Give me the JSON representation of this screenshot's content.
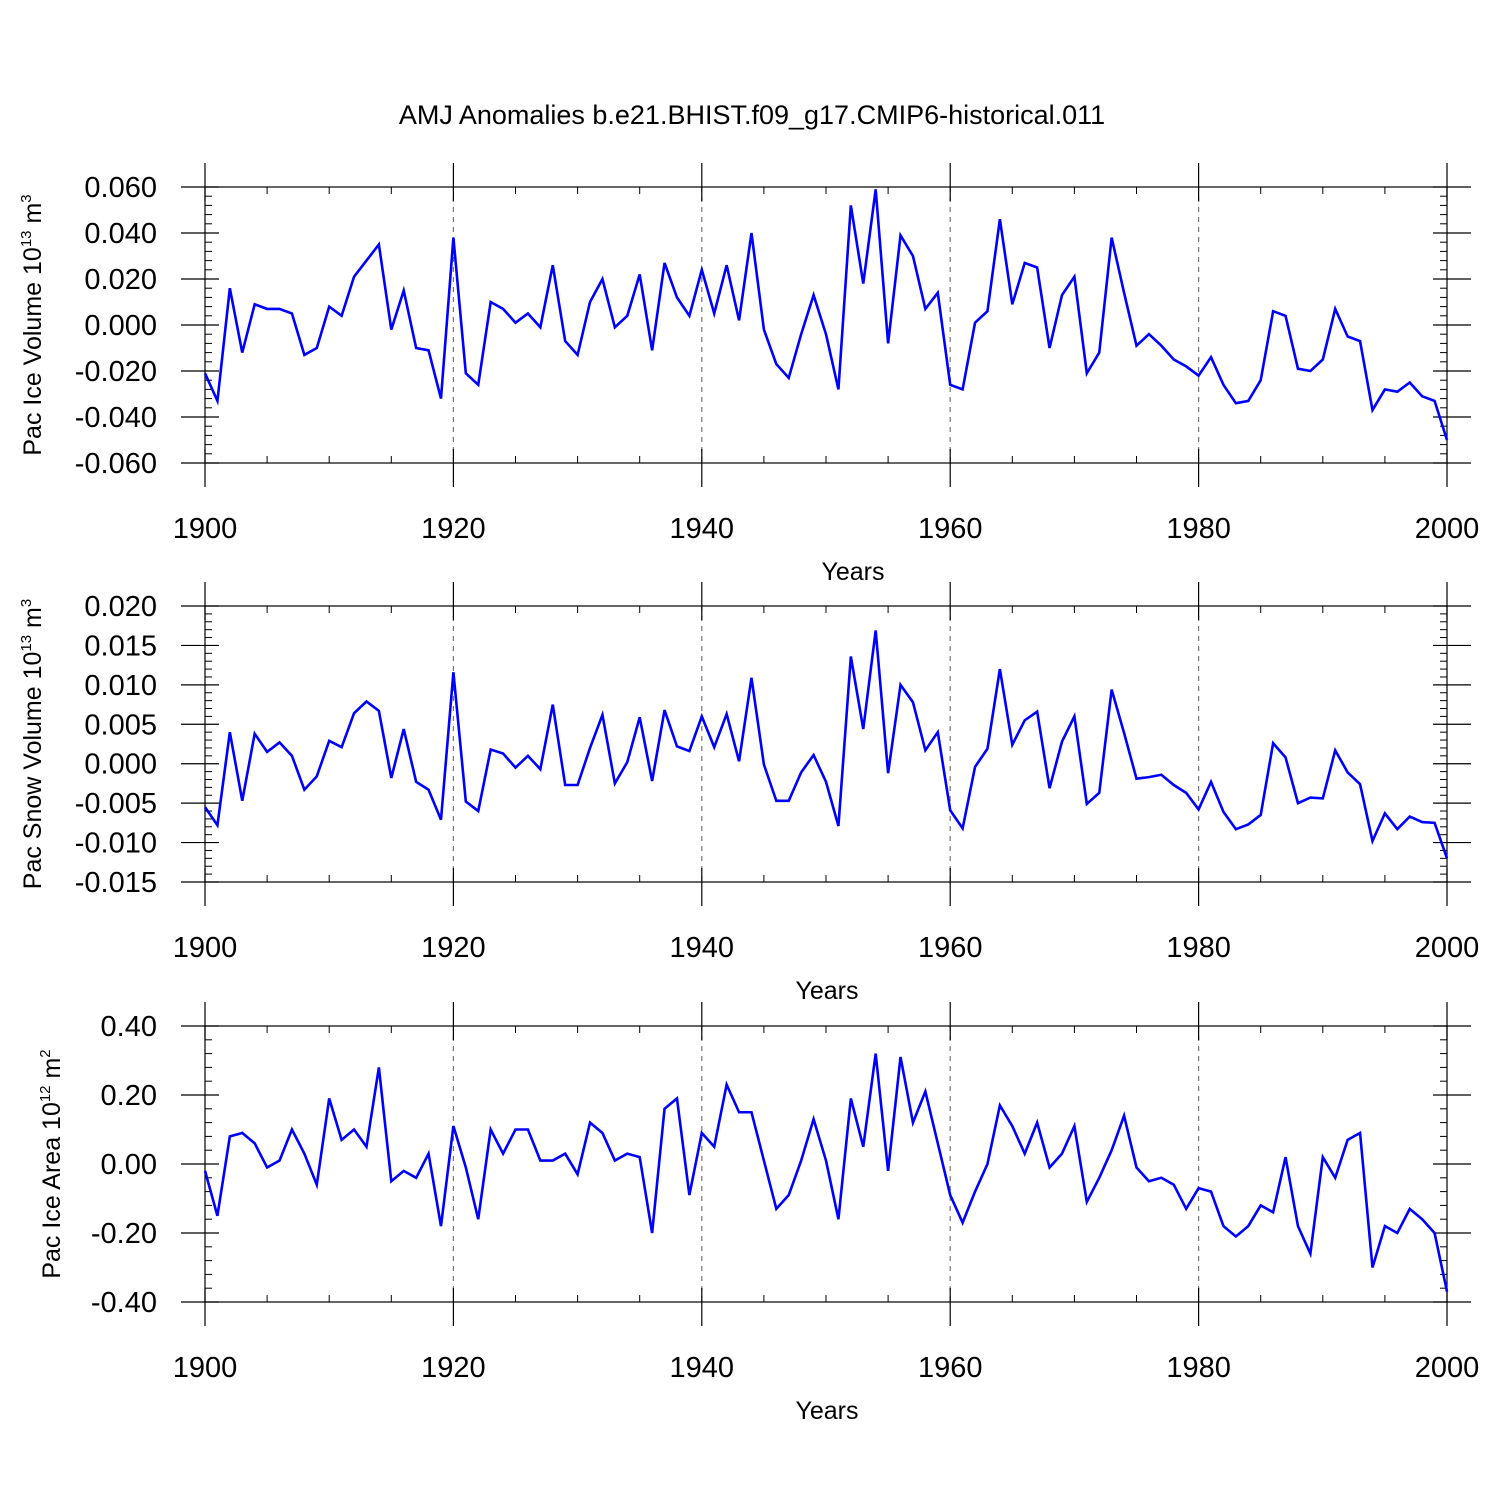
{
  "chart_data": {
    "title": "AMJ Anomalies b.e21.BHIST.f09_g17.CMIP6-historical.011",
    "line_color": "#0000ff",
    "panels": [
      {
        "type": "line",
        "series_name": "Pac Ice Volume",
        "ylabel": "Pac Ice Volume 10",
        "ylabel_exp": "13",
        "ylabel_unit": " m",
        "ylabel_unit_exp": "3",
        "xlabel": "Years",
        "xlim": [
          1900,
          2000
        ],
        "ylim": [
          -0.06,
          0.06
        ],
        "yticks": [
          -0.06,
          -0.04,
          -0.02,
          0.0,
          0.02,
          0.04,
          0.06
        ],
        "ytick_labels": [
          "-0.060",
          "-0.040",
          "-0.020",
          "0.000",
          "0.020",
          "0.040",
          "0.060"
        ],
        "xticks": [
          1900,
          1920,
          1940,
          1960,
          1980,
          2000
        ],
        "xtick_labels": [
          "1900",
          "1920",
          "1940",
          "1960",
          "1980",
          "2000"
        ],
        "grid_x": [
          1920,
          1940,
          1960,
          1980
        ],
        "x_start": 1900,
        "values": [
          -0.021,
          -0.033,
          0.016,
          -0.012,
          0.009,
          0.007,
          0.007,
          0.005,
          -0.013,
          -0.01,
          0.008,
          0.004,
          0.021,
          0.028,
          0.035,
          -0.002,
          0.015,
          -0.01,
          -0.011,
          -0.032,
          0.038,
          -0.021,
          -0.026,
          0.01,
          0.007,
          0.001,
          0.005,
          -0.001,
          0.026,
          -0.007,
          -0.013,
          0.01,
          0.02,
          -0.001,
          0.004,
          0.022,
          -0.011,
          0.027,
          0.012,
          0.004,
          0.024,
          0.005,
          0.026,
          0.002,
          0.04,
          -0.002,
          -0.017,
          -0.023,
          -0.004,
          0.013,
          -0.004,
          -0.028,
          0.052,
          0.018,
          0.059,
          -0.008,
          0.039,
          0.03,
          0.007,
          0.014,
          -0.026,
          -0.028,
          0.001,
          0.006,
          0.046,
          0.009,
          0.027,
          0.025,
          -0.01,
          0.013,
          0.021,
          -0.021,
          -0.012,
          0.038,
          0.014,
          -0.009,
          -0.004,
          -0.009,
          -0.015,
          -0.018,
          -0.022,
          -0.014,
          -0.026,
          -0.034,
          -0.033,
          -0.024,
          0.006,
          0.004,
          -0.019,
          -0.02,
          -0.015,
          0.007,
          -0.005,
          -0.007,
          -0.037,
          -0.028,
          -0.029,
          -0.025,
          -0.031,
          -0.033,
          -0.05
        ]
      },
      {
        "type": "line",
        "series_name": "Pac Snow Volume",
        "ylabel": "Pac Snow Volume 10",
        "ylabel_exp": "13",
        "ylabel_unit": " m",
        "ylabel_unit_exp": "3",
        "xlabel": "Years",
        "xlim": [
          1900,
          2000
        ],
        "ylim": [
          -0.015,
          0.02
        ],
        "yticks": [
          -0.015,
          -0.01,
          -0.005,
          0.0,
          0.005,
          0.01,
          0.015,
          0.02
        ],
        "ytick_labels": [
          "-0.015",
          "-0.010",
          "-0.005",
          "0.000",
          "0.005",
          "0.010",
          "0.015",
          "0.020"
        ],
        "xticks": [
          1900,
          1920,
          1940,
          1960,
          1980,
          2000
        ],
        "xtick_labels": [
          "1900",
          "1920",
          "1940",
          "1960",
          "1980",
          "2000"
        ],
        "grid_x": [
          1920,
          1940,
          1960,
          1980
        ],
        "x_start": 1900,
        "values": [
          -0.0055,
          -0.0078,
          0.004,
          -0.0047,
          0.0038,
          0.0015,
          0.0027,
          0.001,
          -0.0033,
          -0.0016,
          0.0029,
          0.0021,
          0.0064,
          0.0079,
          0.0067,
          -0.0018,
          0.0044,
          -0.0023,
          -0.0033,
          -0.0071,
          0.0116,
          -0.0048,
          -0.006,
          0.0018,
          0.0013,
          -0.0005,
          0.001,
          -0.0007,
          0.0075,
          -0.0027,
          -0.0027,
          0.002,
          0.0062,
          -0.0025,
          0.0002,
          0.0059,
          -0.0022,
          0.0068,
          0.0022,
          0.0016,
          0.006,
          0.0021,
          0.0063,
          0.0003,
          0.0109,
          -0.0001,
          -0.0047,
          -0.0047,
          -0.0011,
          0.0011,
          -0.0023,
          -0.0079,
          0.0136,
          0.0044,
          0.0169,
          -0.0012,
          0.01,
          0.0078,
          0.0017,
          0.004,
          -0.0059,
          -0.0082,
          -0.0004,
          0.0019,
          0.012,
          0.0024,
          0.0055,
          0.0066,
          -0.0031,
          0.0028,
          0.006,
          -0.0051,
          -0.0037,
          0.0094,
          0.0039,
          -0.0019,
          -0.0017,
          -0.0014,
          -0.0027,
          -0.0037,
          -0.0058,
          -0.0023,
          -0.0061,
          -0.0083,
          -0.0077,
          -0.0065,
          0.0026,
          0.0008,
          -0.005,
          -0.0043,
          -0.0044,
          0.0017,
          -0.0011,
          -0.0026,
          -0.0098,
          -0.0063,
          -0.0083,
          -0.0067,
          -0.0074,
          -0.0075,
          -0.012
        ]
      },
      {
        "type": "line",
        "series_name": "Pac Ice Area",
        "ylabel": "Pac Ice Area 10",
        "ylabel_exp": "12",
        "ylabel_unit": " m",
        "ylabel_unit_exp": "2",
        "xlabel": "Years",
        "xlim": [
          1900,
          2000
        ],
        "ylim": [
          -0.4,
          0.4
        ],
        "yticks": [
          -0.4,
          -0.2,
          0.0,
          0.2,
          0.4
        ],
        "ytick_labels": [
          "-0.40",
          "-0.20",
          "0.00",
          "0.20",
          "0.40"
        ],
        "xticks": [
          1900,
          1920,
          1940,
          1960,
          1980,
          2000
        ],
        "xtick_labels": [
          "1900",
          "1920",
          "1940",
          "1960",
          "1980",
          "2000"
        ],
        "grid_x": [
          1920,
          1940,
          1960,
          1980
        ],
        "x_start": 1900,
        "values": [
          -0.02,
          -0.15,
          0.08,
          0.09,
          0.06,
          -0.01,
          0.01,
          0.1,
          0.03,
          -0.06,
          0.19,
          0.07,
          0.1,
          0.05,
          0.28,
          -0.05,
          -0.02,
          -0.04,
          0.03,
          -0.18,
          0.11,
          -0.01,
          -0.16,
          0.1,
          0.03,
          0.1,
          0.1,
          0.01,
          0.01,
          0.03,
          -0.03,
          0.12,
          0.09,
          0.01,
          0.03,
          0.02,
          -0.2,
          0.16,
          0.19,
          -0.09,
          0.09,
          0.05,
          0.23,
          0.15,
          0.15,
          0.01,
          -0.13,
          -0.09,
          0.01,
          0.13,
          0.01,
          -0.16,
          0.19,
          0.05,
          0.32,
          -0.02,
          0.31,
          0.12,
          0.21,
          0.06,
          -0.09,
          -0.17,
          -0.08,
          0.0,
          0.17,
          0.11,
          0.03,
          0.12,
          -0.01,
          0.03,
          0.11,
          -0.11,
          -0.04,
          0.04,
          0.14,
          -0.01,
          -0.05,
          -0.04,
          -0.06,
          -0.13,
          -0.07,
          -0.08,
          -0.18,
          -0.21,
          -0.18,
          -0.12,
          -0.14,
          0.02,
          -0.18,
          -0.26,
          0.02,
          -0.04,
          0.07,
          0.09,
          -0.3,
          -0.18,
          -0.2,
          -0.13,
          -0.16,
          -0.2,
          -0.37
        ]
      }
    ]
  }
}
